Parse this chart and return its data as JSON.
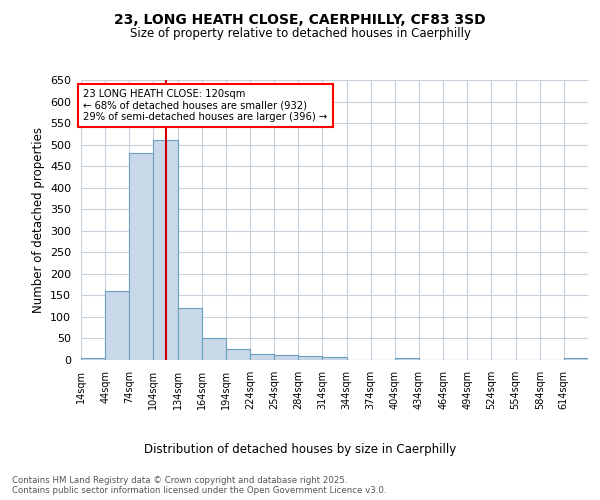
{
  "title_line1": "23, LONG HEATH CLOSE, CAERPHILLY, CF83 3SD",
  "title_line2": "Size of property relative to detached houses in Caerphilly",
  "xlabel": "Distribution of detached houses by size in Caerphilly",
  "ylabel": "Number of detached properties",
  "bar_color": "#c8d8e8",
  "bar_edge_color": "#6a9fc0",
  "vline_color": "#cc0000",
  "vline_x": 120,
  "annotation_line1": "23 LONG HEATH CLOSE: 120sqm",
  "annotation_line2": "← 68% of detached houses are smaller (932)",
  "annotation_line3": "29% of semi-detached houses are larger (396) →",
  "bin_edges": [
    14,
    44,
    74,
    104,
    134,
    164,
    194,
    224,
    254,
    284,
    314,
    344,
    374,
    404,
    434,
    464,
    494,
    524,
    554,
    584,
    614
  ],
  "bin_labels": [
    "14sqm",
    "44sqm",
    "74sqm",
    "104sqm",
    "134sqm",
    "164sqm",
    "194sqm",
    "224sqm",
    "254sqm",
    "284sqm",
    "314sqm",
    "344sqm",
    "374sqm",
    "404sqm",
    "434sqm",
    "464sqm",
    "494sqm",
    "524sqm",
    "554sqm",
    "584sqm",
    "614sqm"
  ],
  "bar_heights": [
    5,
    160,
    480,
    510,
    120,
    50,
    25,
    15,
    12,
    10,
    8,
    0,
    0,
    5,
    0,
    0,
    0,
    0,
    0,
    0,
    5
  ],
  "ylim": [
    0,
    650
  ],
  "yticks": [
    0,
    50,
    100,
    150,
    200,
    250,
    300,
    350,
    400,
    450,
    500,
    550,
    600,
    650
  ],
  "footer_text": "Contains HM Land Registry data © Crown copyright and database right 2025.\nContains public sector information licensed under the Open Government Licence v3.0.",
  "background_color": "#ffffff",
  "grid_color": "#c8d0dc"
}
